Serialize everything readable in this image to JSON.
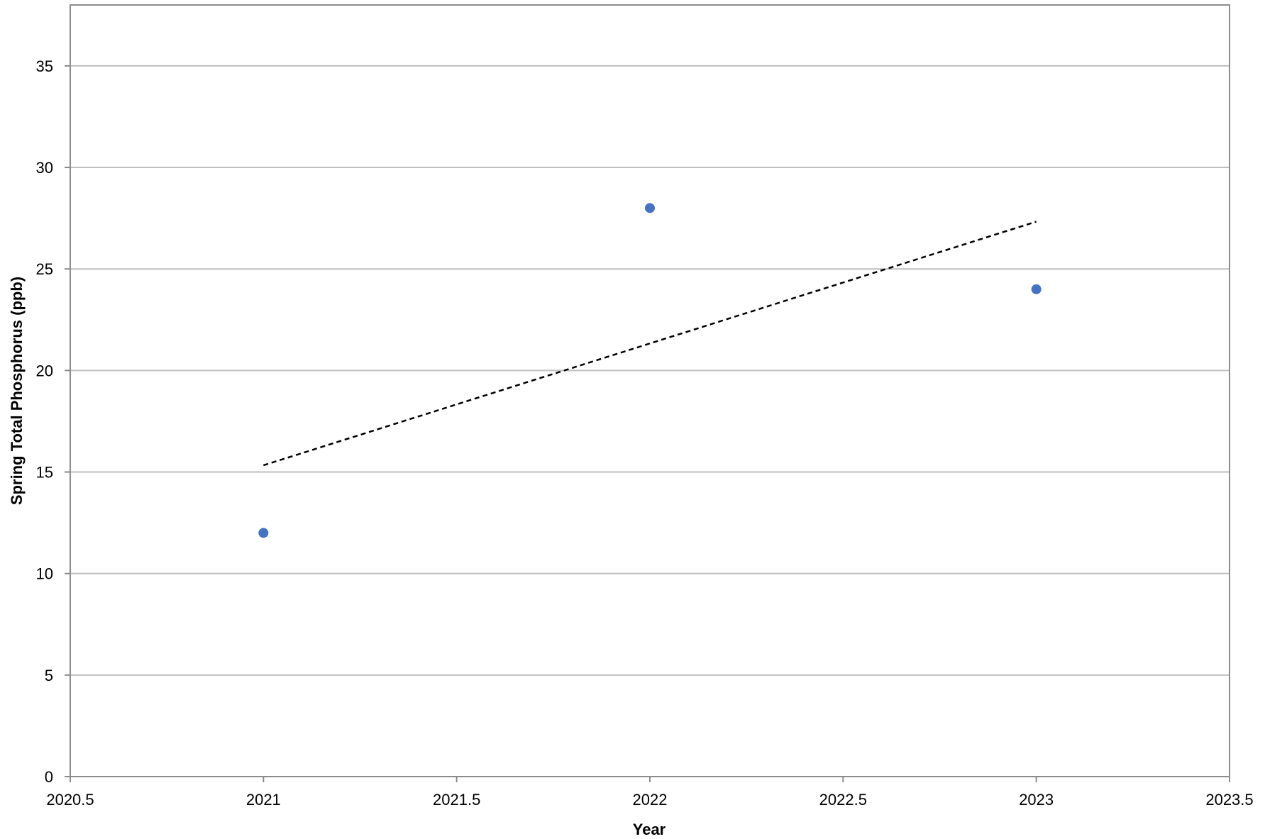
{
  "chart_data": {
    "type": "scatter",
    "title": "",
    "xlabel": "Year",
    "ylabel": "Spring Total Phosphorus (ppb)",
    "xlim": [
      2020.5,
      2023.5
    ],
    "ylim": [
      0,
      38
    ],
    "x_ticks": [
      2020.5,
      2021,
      2021.5,
      2022,
      2022.5,
      2023,
      2023.5
    ],
    "y_ticks": [
      0,
      5,
      10,
      15,
      20,
      25,
      30,
      35
    ],
    "x_tick_labels": [
      "2020.5",
      "2021",
      "2021.5",
      "2022",
      "2022.5",
      "2023",
      "2023.5"
    ],
    "y_tick_labels": [
      "0",
      "5",
      "10",
      "15",
      "20",
      "25",
      "30",
      "35"
    ],
    "grid": "horizontal",
    "legend": "none",
    "series": [
      {
        "x": [
          2021,
          2022,
          2023
        ],
        "values": [
          12,
          28,
          24
        ],
        "color": "#4472C4",
        "marker": "circle"
      }
    ],
    "trendline": {
      "type": "linear",
      "style": "dashed",
      "color": "#000000",
      "x": [
        2021,
        2023
      ],
      "values": [
        15.33,
        27.33
      ]
    }
  }
}
